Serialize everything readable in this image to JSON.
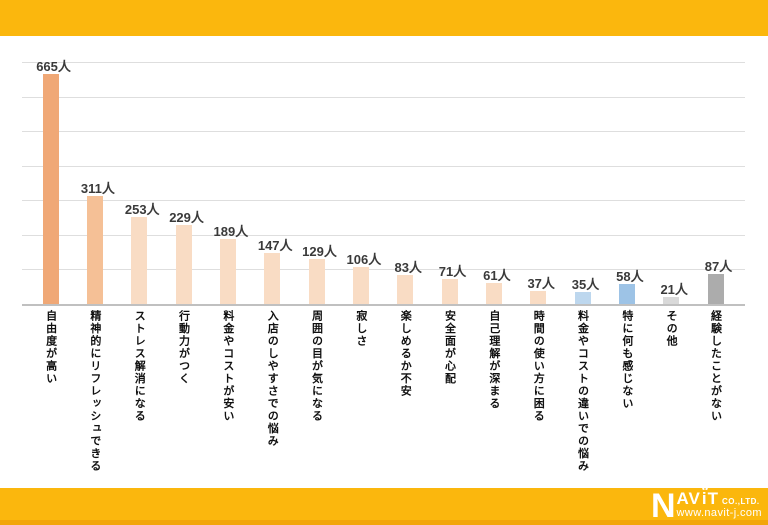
{
  "header": {
    "background": "#FBB70D"
  },
  "footer": {
    "background": "#FBB70D",
    "bottom_strip_color": "#F2A50A",
    "logo": {
      "initial": "N",
      "letters_av": "AV",
      "letter_i": "i",
      "letter_t": "T",
      "suffix": "CO.,LTD.",
      "url": "www.navit-j.com",
      "text_color": "#FFFFFF"
    }
  },
  "chart_data": {
    "type": "bar",
    "title": "",
    "xlabel": "",
    "ylabel": "",
    "unit": "人",
    "categories": [
      "自由度が高い",
      "精神的にリフレッシュできる",
      "ストレス解消になる",
      "行動力がつく",
      "料金やコストが安い",
      "入店のしやすさでの悩み",
      "周囲の目が気になる",
      "寂しさ",
      "楽しめるか不安",
      "安全面が心配",
      "自己理解が深まる",
      "時間の使い方に困る",
      "料金やコストの違いでの悩み",
      "特に何も感じない",
      "その他",
      "経験したことがない"
    ],
    "values": [
      665,
      311,
      253,
      229,
      189,
      147,
      129,
      106,
      83,
      71,
      61,
      37,
      35,
      58,
      21,
      87
    ],
    "value_labels": [
      "665人",
      "311人",
      "253人",
      "229人",
      "189人",
      "147人",
      "129人",
      "106人",
      "83人",
      "71人",
      "61人",
      "37人",
      "35人",
      "58人",
      "21人",
      "87人"
    ],
    "bar_colors": [
      "#F0A876",
      "#F5C096",
      "#F9DCC4",
      "#F9DCC4",
      "#F9DCC4",
      "#F9DCC4",
      "#F9DCC4",
      "#F9DCC4",
      "#F9DCC4",
      "#F9DCC4",
      "#F9DCC4",
      "#F9DCC4",
      "#BDD7EE",
      "#9DC3E6",
      "#D9D9D9",
      "#ACACAC"
    ],
    "ylim": [
      0,
      700
    ],
    "grid_interval": 100,
    "grid": true,
    "legend": false,
    "background": "#FFFFFF",
    "gridline_color": "#DEDEDE",
    "axis_line_color": "#C0C0C0",
    "value_label_color": "#3A3A3A",
    "category_label_color": "#111111"
  }
}
